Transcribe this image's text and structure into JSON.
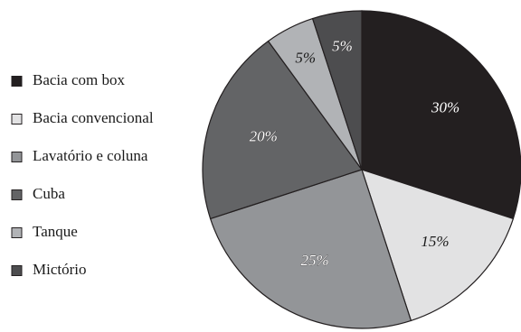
{
  "chart_data": {
    "type": "pie",
    "title": "",
    "legend_position": "left",
    "slices": [
      {
        "label": "Bacia com box",
        "value": 30,
        "display": "30%",
        "color": "#231f20",
        "label_color": "#ffffff"
      },
      {
        "label": "Bacia convencional",
        "value": 15,
        "display": "15%",
        "color": "#e2e2e3",
        "label_color": "#1a1a1a"
      },
      {
        "label": "Lavatório e coluna",
        "value": 25,
        "display": "25%",
        "color": "#939598",
        "label_color": "#ffffff"
      },
      {
        "label": "Cuba",
        "value": 20,
        "display": "20%",
        "color": "#636466",
        "label_color": "#ffffff"
      },
      {
        "label": "Tanque",
        "value": 5,
        "display": "5%",
        "color": "#b1b3b6",
        "label_color": "#1a1a1a"
      },
      {
        "label": "Mictório",
        "value": 5,
        "display": "5%",
        "color": "#4d4d4f",
        "label_color": "#ffffff"
      }
    ]
  }
}
